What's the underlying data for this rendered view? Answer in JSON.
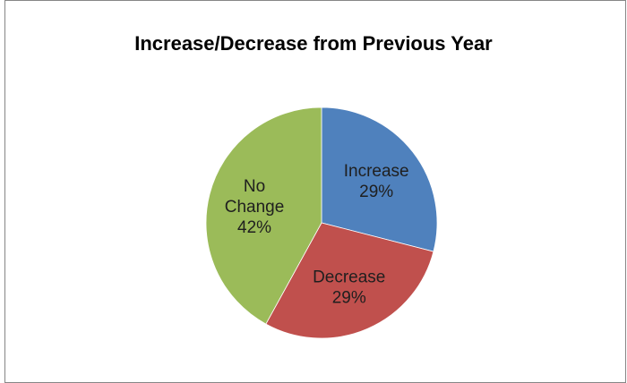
{
  "chart_data": {
    "type": "pie",
    "title": "Increase/Decrease from Previous Year",
    "slices": [
      {
        "label": "Increase",
        "percent_label": "29%",
        "value": 29,
        "color": "#4f81bd"
      },
      {
        "label": "Decrease",
        "percent_label": "29%",
        "value": 29,
        "color": "#c0504d"
      },
      {
        "label": "No Change",
        "percent_label": "42%",
        "value": 42,
        "color": "#9bbb59"
      }
    ],
    "start_angle_deg": 0,
    "direction": "clockwise",
    "legend": "none",
    "label_color": "#1f1f1f"
  }
}
